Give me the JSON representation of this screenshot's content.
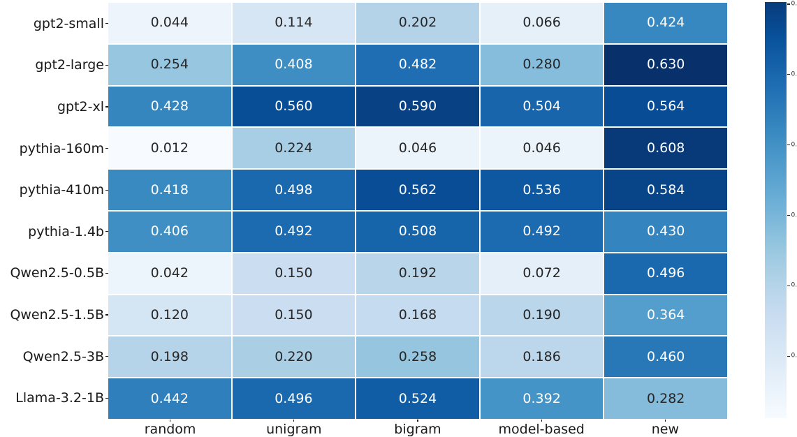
{
  "chart_data": {
    "type": "heatmap",
    "title": "",
    "xlabel": "",
    "ylabel": "",
    "rows": [
      "gpt2-small",
      "gpt2-large",
      "gpt2-xl",
      "pythia-160m",
      "pythia-410m",
      "pythia-1.4b",
      "Qwen2.5-0.5B",
      "Qwen2.5-1.5B",
      "Qwen2.5-3B",
      "Llama-3.2-1B"
    ],
    "columns": [
      "random",
      "unigram",
      "bigram",
      "model-based",
      "new"
    ],
    "values": [
      [
        0.044,
        0.114,
        0.202,
        0.066,
        0.424
      ],
      [
        0.254,
        0.408,
        0.482,
        0.28,
        0.63
      ],
      [
        0.428,
        0.56,
        0.59,
        0.504,
        0.564
      ],
      [
        0.012,
        0.224,
        0.046,
        0.046,
        0.608
      ],
      [
        0.418,
        0.498,
        0.562,
        0.536,
        0.584
      ],
      [
        0.406,
        0.492,
        0.508,
        0.492,
        0.43
      ],
      [
        0.042,
        0.15,
        0.192,
        0.072,
        0.496
      ],
      [
        0.12,
        0.15,
        0.168,
        0.19,
        0.364
      ],
      [
        0.198,
        0.22,
        0.258,
        0.186,
        0.46
      ],
      [
        0.442,
        0.496,
        0.524,
        0.392,
        0.282
      ]
    ],
    "value_decimals": 3,
    "annotated": true,
    "colormap": "Blues",
    "grid_lines": "white",
    "legend_position": "none",
    "colorbar": {
      "position": "right",
      "tick_labels": [
        "0.6",
        "0.5",
        "0.4",
        "0.3",
        "0.2",
        "0.1"
      ],
      "tick_values": [
        0.6,
        0.5,
        0.4,
        0.3,
        0.2,
        0.1
      ]
    },
    "colors": {
      "annotation_on_dark": "#ffffff",
      "annotation_on_light": "#262626",
      "axis_text": "#1a1a1a",
      "background": "#ffffff",
      "colormap_low": "#f7fbff",
      "colormap_high": "#08306b"
    }
  }
}
